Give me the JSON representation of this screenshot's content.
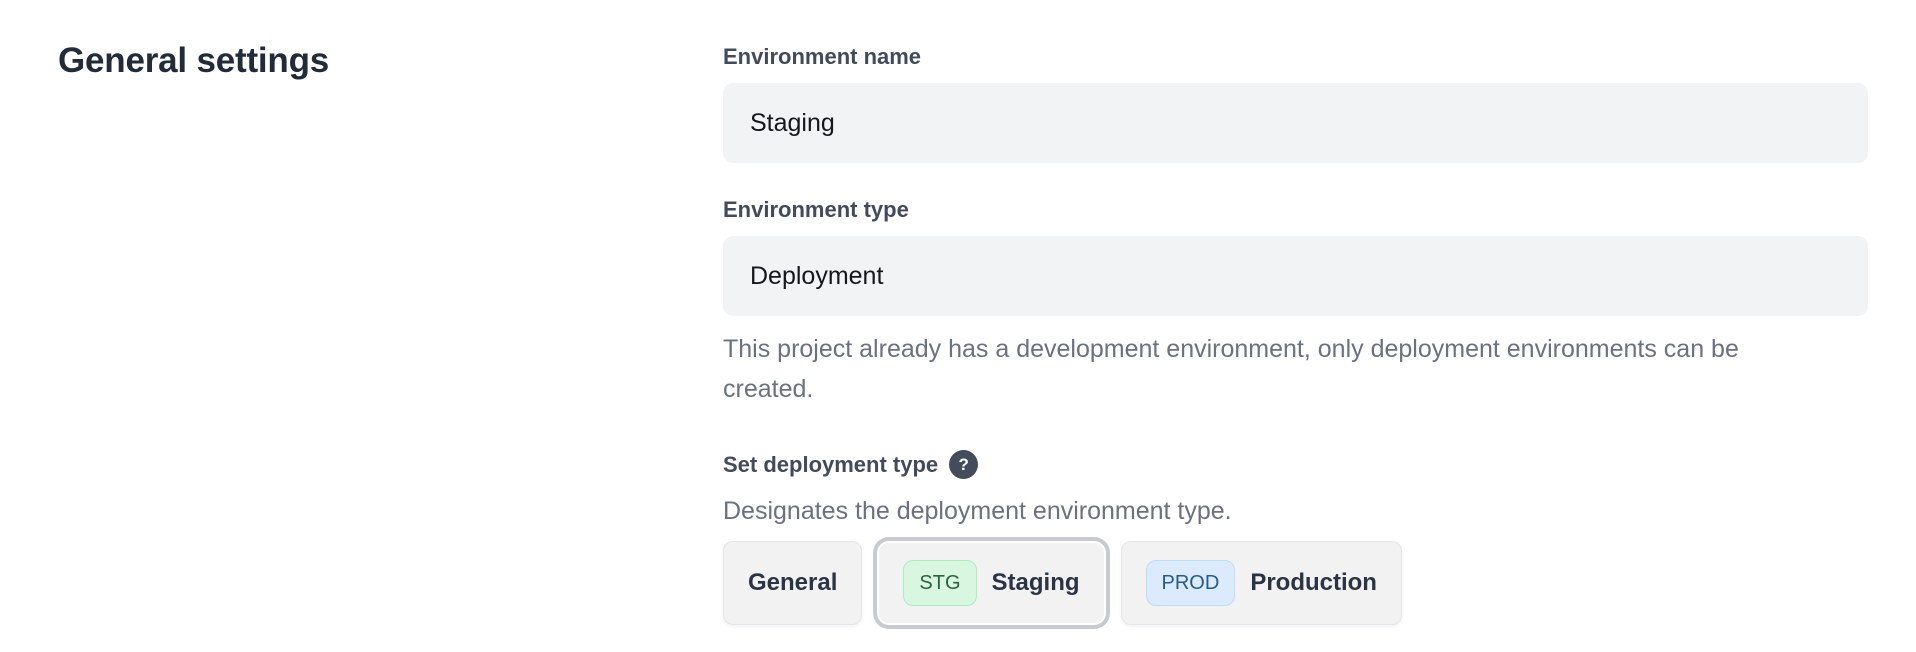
{
  "page": {
    "title": "General settings"
  },
  "form": {
    "environment_name": {
      "label": "Environment name",
      "value": "Staging"
    },
    "environment_type": {
      "label": "Environment type",
      "value": "Deployment",
      "helper": "This project already has a development environment, only deployment environments can be created."
    },
    "deployment_type": {
      "label": "Set deployment type",
      "help_icon": "question-mark-icon",
      "help_glyph": "?",
      "description": "Designates the deployment environment type.",
      "options": [
        {
          "label": "General",
          "badge": "",
          "selected": false
        },
        {
          "label": "Staging",
          "badge": "STG",
          "selected": true
        },
        {
          "label": "Production",
          "badge": "PROD",
          "selected": false
        }
      ]
    }
  },
  "colors": {
    "heading": "#222b3a",
    "label": "#414b5c",
    "muted": "#6a7180",
    "input_bg": "#f2f3f4",
    "help_icon_bg": "#424c5b",
    "button_bg": "#f2f2f3",
    "button_border": "#e4e5e8",
    "button_text": "#2b3444",
    "selected_ring": "#c7cbd1",
    "stg_badge_bg": "#d9f6e1",
    "stg_badge_border": "#abeebc",
    "stg_badge_text": "#2a6340",
    "prod_badge_bg": "#dbeafd",
    "prod_badge_border": "#bddcf8",
    "prod_badge_text": "#245c8e"
  }
}
